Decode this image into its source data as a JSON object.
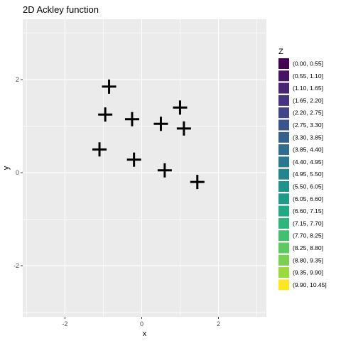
{
  "chart_data": {
    "type": "scatter",
    "title": "2D Ackley function",
    "xlabel": "x",
    "ylabel": "y",
    "xlim": [
      -3.1,
      3.25
    ],
    "ylim": [
      -3.1,
      3.3
    ],
    "x_ticks": [
      -2,
      0,
      2
    ],
    "y_ticks": [
      -2,
      0,
      2
    ],
    "x_tick_labels": [
      "-2",
      "0",
      "2"
    ],
    "y_tick_labels": [
      "-2",
      "0",
      "2"
    ],
    "grid": true,
    "marker": "plus",
    "points": [
      {
        "x": -0.85,
        "y": 1.85
      },
      {
        "x": -0.95,
        "y": 1.25
      },
      {
        "x": -0.25,
        "y": 1.15
      },
      {
        "x": 0.5,
        "y": 1.05
      },
      {
        "x": 1.0,
        "y": 1.4
      },
      {
        "x": 1.1,
        "y": 0.95
      },
      {
        "x": -1.1,
        "y": 0.5
      },
      {
        "x": -0.2,
        "y": 0.28
      },
      {
        "x": 0.6,
        "y": 0.05
      },
      {
        "x": 1.45,
        "y": -0.2
      }
    ],
    "legend": {
      "title": "Z",
      "placement": "right",
      "entries": [
        {
          "label": "(0.00, 0.55]",
          "color": "#440154"
        },
        {
          "label": "(0.55, 1.10]",
          "color": "#471365"
        },
        {
          "label": "(1.10, 1.65]",
          "color": "#482475"
        },
        {
          "label": "(1.65, 2.20]",
          "color": "#463480"
        },
        {
          "label": "(2.20, 2.75]",
          "color": "#414487"
        },
        {
          "label": "(2.75, 3.30]",
          "color": "#3b528b"
        },
        {
          "label": "(3.30, 3.85]",
          "color": "#355f8d"
        },
        {
          "label": "(3.85, 4.40]",
          "color": "#2f6c8e"
        },
        {
          "label": "(4.40, 4.95]",
          "color": "#2a788e"
        },
        {
          "label": "(4.95, 5.50]",
          "color": "#25848e"
        },
        {
          "label": "(5.50, 6.05]",
          "color": "#21918c"
        },
        {
          "label": "(6.05, 6.60]",
          "color": "#1e9c89"
        },
        {
          "label": "(6.60, 7.15]",
          "color": "#22a884"
        },
        {
          "label": "(7.15, 7.70]",
          "color": "#2fb47c"
        },
        {
          "label": "(7.70, 8.25]",
          "color": "#44bf70"
        },
        {
          "label": "(8.25, 8.80]",
          "color": "#5ec962"
        },
        {
          "label": "(8.80, 9.35]",
          "color": "#7ad151"
        },
        {
          "label": "(9.35, 9.90]",
          "color": "#9bd93c"
        },
        {
          "label": "(9.90, 10.45]",
          "color": "#fde725"
        }
      ]
    }
  }
}
